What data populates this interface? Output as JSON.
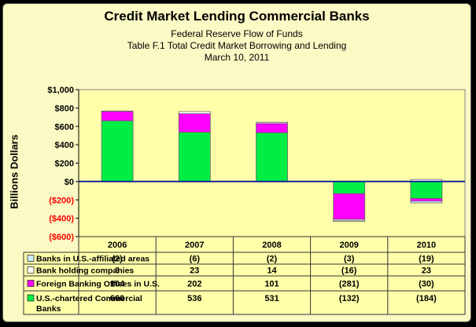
{
  "chart_data": {
    "type": "bar",
    "stacked": true,
    "title": "Credit Market Lending Commercial Banks",
    "subtitle": [
      "Federal Reserve Flow of Funds",
      "Table F.1 Total Credit Market Borrowing and Lending",
      "March 10, 2011"
    ],
    "ylabel": "Billions Dollars",
    "ylim": [
      -600,
      1000
    ],
    "yticks": [
      "$1,000",
      "$800",
      "$600",
      "$400",
      "$200",
      "$0",
      "($200)",
      "($400)",
      "($600)"
    ],
    "categories": [
      "2006",
      "2007",
      "2008",
      "2009",
      "2010"
    ],
    "series": [
      {
        "name": "Banks in U.S.-affiliated areas",
        "color": "#ccecff",
        "values": [
          -2,
          -6,
          -2,
          -3,
          -19
        ],
        "labels": [
          "(2)",
          "(6)",
          "(2)",
          "(3)",
          "(19)"
        ]
      },
      {
        "name": "Bank holding companies",
        "color": "#ffffff",
        "values": [
          3,
          23,
          14,
          -16,
          23
        ],
        "labels": [
          "3",
          "23",
          "14",
          "(16)",
          "23"
        ]
      },
      {
        "name": "Foreign Banking Offices in U.S.",
        "color": "#ff00ff",
        "values": [
          104,
          202,
          101,
          -281,
          -30
        ],
        "labels": [
          "104",
          "202",
          "101",
          "(281)",
          "(30)"
        ]
      },
      {
        "name": "U.S.-chartered Commercial Banks",
        "color": "#00ee44",
        "values": [
          660,
          536,
          531,
          -132,
          -184
        ],
        "labels": [
          "660",
          "536",
          "531",
          "(132)",
          "(184)"
        ]
      }
    ],
    "grid": false
  }
}
